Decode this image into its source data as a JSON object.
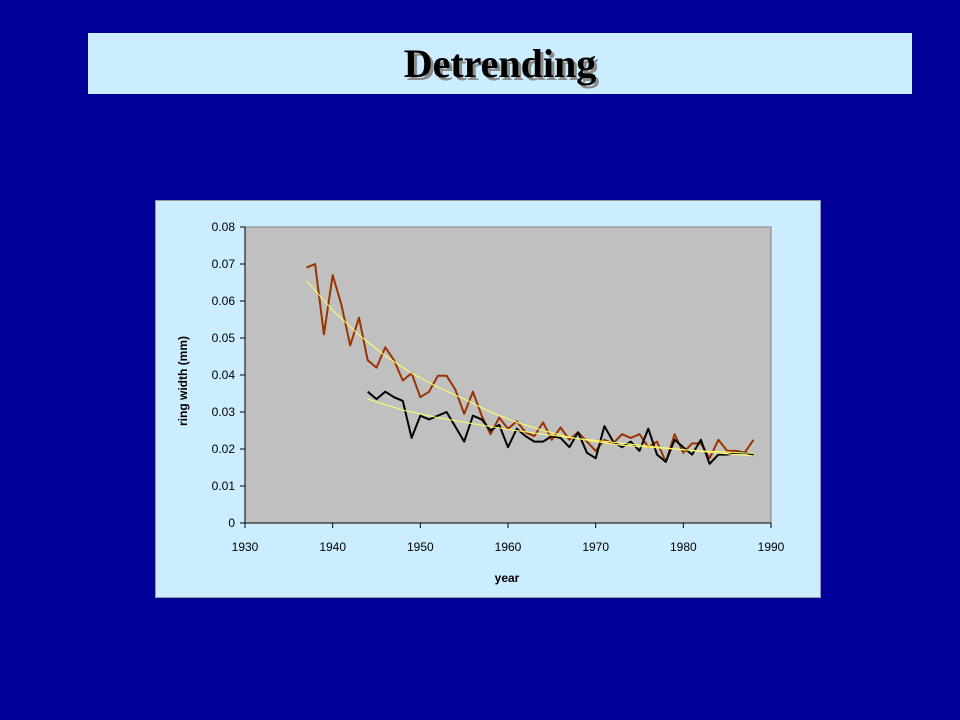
{
  "slide": {
    "title": "Detrending"
  },
  "colors": {
    "background": "#000099",
    "panel": "#ccecff",
    "plot_area": "#c0c0c0",
    "series_brown": "#993300",
    "series_black": "#000000",
    "trend": "#ffff66"
  },
  "chart_data": {
    "type": "line",
    "xlabel": "year",
    "ylabel": "ring width (mm)",
    "xlim": [
      1930,
      1990
    ],
    "ylim": [
      0,
      0.08
    ],
    "x_ticks": [
      "1930",
      "1940",
      "1950",
      "1960",
      "1970",
      "1980",
      "1990"
    ],
    "y_ticks": [
      "0",
      "0.01",
      "0.02",
      "0.03",
      "0.04",
      "0.05",
      "0.06",
      "0.07",
      "0.08"
    ],
    "grid": false,
    "legend": false,
    "series": [
      {
        "color": "#993300",
        "x": [
          1937,
          1938,
          1939,
          1940,
          1941,
          1942,
          1943,
          1944,
          1945,
          1946,
          1947,
          1948,
          1949,
          1950,
          1951,
          1952,
          1953,
          1954,
          1955,
          1956,
          1957,
          1958,
          1959,
          1960,
          1961,
          1962,
          1963,
          1964,
          1965,
          1966,
          1967,
          1968,
          1969,
          1970,
          1971,
          1972,
          1973,
          1974,
          1975,
          1976,
          1977,
          1978,
          1979,
          1980,
          1981,
          1982,
          1983,
          1984,
          1985,
          1986,
          1987,
          1988
        ],
        "y": [
          0.069,
          0.07,
          0.051,
          0.067,
          0.059,
          0.048,
          0.0555,
          0.044,
          0.042,
          0.0475,
          0.044,
          0.0385,
          0.0405,
          0.034,
          0.0355,
          0.0398,
          0.0398,
          0.036,
          0.0295,
          0.0355,
          0.029,
          0.024,
          0.0285,
          0.0255,
          0.0275,
          0.0245,
          0.0235,
          0.0272,
          0.0225,
          0.0258,
          0.0225,
          0.0245,
          0.022,
          0.0195,
          0.0225,
          0.0215,
          0.024,
          0.023,
          0.024,
          0.0205,
          0.022,
          0.0165,
          0.024,
          0.019,
          0.0215,
          0.0215,
          0.0175,
          0.0225,
          0.0195,
          0.0195,
          0.019,
          0.0225
        ]
      },
      {
        "color": "#000000",
        "x": [
          1944,
          1945,
          1946,
          1947,
          1948,
          1949,
          1950,
          1951,
          1952,
          1953,
          1954,
          1955,
          1956,
          1957,
          1958,
          1959,
          1960,
          1961,
          1962,
          1963,
          1964,
          1965,
          1966,
          1967,
          1968,
          1969,
          1970,
          1971,
          1972,
          1973,
          1974,
          1975,
          1976,
          1977,
          1978,
          1979,
          1980,
          1981,
          1982,
          1983,
          1984,
          1985,
          1986,
          1987,
          1988
        ],
        "y": [
          0.0355,
          0.0335,
          0.0355,
          0.034,
          0.033,
          0.023,
          0.029,
          0.028,
          0.029,
          0.03,
          0.026,
          0.022,
          0.029,
          0.028,
          0.025,
          0.0265,
          0.0205,
          0.0255,
          0.0235,
          0.022,
          0.022,
          0.0235,
          0.023,
          0.0205,
          0.0245,
          0.019,
          0.0175,
          0.0262,
          0.022,
          0.0205,
          0.022,
          0.0195,
          0.0255,
          0.0185,
          0.0165,
          0.0225,
          0.0205,
          0.0185,
          0.0225,
          0.016,
          0.0185,
          0.0185,
          0.019,
          0.019,
          0.0185
        ]
      },
      {
        "color": "#ffff66",
        "x": [
          1937,
          1940,
          1943,
          1946,
          1949,
          1952,
          1955,
          1958,
          1961,
          1964,
          1967,
          1970,
          1973,
          1976,
          1979,
          1982,
          1985,
          1988
        ],
        "y": [
          0.0655,
          0.0575,
          0.0508,
          0.0452,
          0.0405,
          0.0367,
          0.0335,
          0.03,
          0.0272,
          0.025,
          0.0232,
          0.022,
          0.021,
          0.0205,
          0.02,
          0.0195,
          0.0192,
          0.0188
        ]
      },
      {
        "color": "#ffff66",
        "x": [
          1944,
          1948,
          1952,
          1956,
          1960,
          1964,
          1968,
          1972,
          1976,
          1980,
          1984,
          1988
        ],
        "y": [
          0.0335,
          0.0305,
          0.0285,
          0.0268,
          0.0253,
          0.024,
          0.0228,
          0.0218,
          0.0208,
          0.0198,
          0.0189,
          0.0181
        ]
      }
    ]
  }
}
